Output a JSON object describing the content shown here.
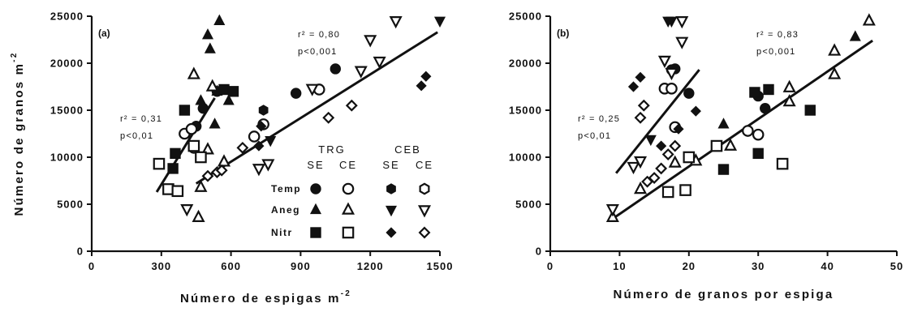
{
  "chart_data": [
    {
      "type": "scatter",
      "panel_label": "(a)",
      "xlabel": "Número de espigas m",
      "xlabel_sup": "-2",
      "ylabel": "Número de granos m",
      "ylabel_sup": "-2",
      "xlim": [
        0,
        1500
      ],
      "ylim": [
        0,
        25000
      ],
      "xticks": [
        0,
        300,
        600,
        900,
        1200,
        1500
      ],
      "yticks": [
        0,
        5000,
        10000,
        15000,
        20000,
        25000
      ],
      "grid": false,
      "legend_placement": "bottom-right",
      "annotations": [
        {
          "lines": [
            "r² = 0,31",
            "p<0,01"
          ]
        },
        {
          "lines": [
            "r² = 0,80",
            "p<0,001"
          ]
        }
      ],
      "regression_lines": [
        {
          "x": [
            280,
            530
          ],
          "y": [
            6300,
            16300
          ]
        },
        {
          "x": [
            450,
            1490
          ],
          "y": [
            7200,
            23300
          ]
        }
      ],
      "series": [
        {
          "system": "TRG",
          "treatment": "SE",
          "group": "Temp",
          "marker": "circle",
          "filled": true,
          "points": [
            [
              450,
              13300
            ],
            [
              480,
              15200
            ],
            [
              540,
              17000
            ],
            [
              880,
              16800
            ],
            [
              1050,
              19400
            ]
          ]
        },
        {
          "system": "TRG",
          "treatment": "CE",
          "group": "Temp",
          "marker": "circle",
          "filled": false,
          "points": [
            [
              400,
              12500
            ],
            [
              430,
              13000
            ],
            [
              440,
              11000
            ],
            [
              700,
              12200
            ],
            [
              740,
              13500
            ],
            [
              980,
              17200
            ]
          ]
        },
        {
          "system": "TRG",
          "treatment": "SE",
          "group": "Aneg",
          "marker": "triangle-up",
          "filled": true,
          "points": [
            [
              470,
              16000
            ],
            [
              500,
              23000
            ],
            [
              510,
              21500
            ],
            [
              530,
              13500
            ],
            [
              540,
              17000
            ],
            [
              550,
              24500
            ],
            [
              590,
              16000
            ]
          ]
        },
        {
          "system": "TRG",
          "treatment": "CE",
          "group": "Aneg",
          "marker": "triangle-up",
          "filled": false,
          "points": [
            [
              440,
              18800
            ],
            [
              460,
              3600
            ],
            [
              470,
              6800
            ],
            [
              500,
              10800
            ],
            [
              520,
              17500
            ],
            [
              570,
              9500
            ]
          ]
        },
        {
          "system": "TRG",
          "treatment": "SE",
          "group": "Nitr",
          "marker": "square",
          "filled": true,
          "points": [
            [
              350,
              8800
            ],
            [
              360,
              10400
            ],
            [
              400,
              15000
            ],
            [
              570,
              17200
            ],
            [
              610,
              17000
            ]
          ]
        },
        {
          "system": "TRG",
          "treatment": "CE",
          "group": "Nitr",
          "marker": "square",
          "filled": false,
          "points": [
            [
              290,
              9300
            ],
            [
              330,
              6600
            ],
            [
              370,
              6400
            ],
            [
              440,
              11200
            ],
            [
              470,
              10000
            ]
          ]
        },
        {
          "system": "CEB",
          "treatment": "SE",
          "group": "Temp",
          "marker": "hexagon",
          "filled": true,
          "points": [
            [
              740,
              15000
            ]
          ]
        },
        {
          "system": "CEB",
          "treatment": "CE",
          "group": "Temp",
          "marker": "hexagon",
          "filled": false,
          "points": []
        },
        {
          "system": "CEB",
          "treatment": "SE",
          "group": "Aneg",
          "marker": "triangle-down",
          "filled": true,
          "points": [
            [
              770,
              11800
            ],
            [
              1500,
              24500
            ]
          ]
        },
        {
          "system": "CEB",
          "treatment": "CE",
          "group": "Aneg",
          "marker": "triangle-down",
          "filled": false,
          "points": [
            [
              410,
              4500
            ],
            [
              720,
              8800
            ],
            [
              760,
              9300
            ],
            [
              950,
              17300
            ],
            [
              1160,
              19200
            ],
            [
              1200,
              22500
            ],
            [
              1240,
              20200
            ],
            [
              1310,
              24500
            ]
          ]
        },
        {
          "system": "CEB",
          "treatment": "SE",
          "group": "Nitr",
          "marker": "diamond",
          "filled": true,
          "points": [
            [
              720,
              11200
            ],
            [
              730,
              13300
            ],
            [
              1420,
              17600
            ],
            [
              1440,
              18600
            ]
          ]
        },
        {
          "system": "CEB",
          "treatment": "CE",
          "group": "Nitr",
          "marker": "diamond",
          "filled": false,
          "points": [
            [
              500,
              8000
            ],
            [
              540,
              8400
            ],
            [
              560,
              8600
            ],
            [
              650,
              11000
            ],
            [
              1020,
              14200
            ],
            [
              1120,
              15500
            ]
          ]
        }
      ]
    },
    {
      "type": "scatter",
      "panel_label": "(b)",
      "xlabel": "Número de granos por espiga",
      "xlabel_sup": "",
      "ylabel": "",
      "ylabel_sup": "",
      "xlim": [
        0,
        50
      ],
      "ylim": [
        0,
        25000
      ],
      "xticks": [
        0,
        10,
        20,
        30,
        40,
        50
      ],
      "yticks": [
        0,
        5000,
        10000,
        15000,
        20000,
        25000
      ],
      "grid": false,
      "annotations": [
        {
          "lines": [
            "r² = 0,25",
            "p<0,01"
          ]
        },
        {
          "lines": [
            "r² = 0,83",
            "p<0,001"
          ]
        }
      ],
      "regression_lines": [
        {
          "x": [
            9.5,
            21.5
          ],
          "y": [
            8300,
            19300
          ]
        },
        {
          "x": [
            8.5,
            46.5
          ],
          "y": [
            3200,
            22400
          ]
        }
      ],
      "series": [
        {
          "system": "TRG",
          "treatment": "SE",
          "group": "Temp",
          "marker": "circle",
          "filled": true,
          "points": [
            [
              17.5,
              19300
            ],
            [
              18,
              19400
            ],
            [
              20,
              16800
            ],
            [
              30,
              16500
            ],
            [
              31,
              15200
            ]
          ]
        },
        {
          "system": "TRG",
          "treatment": "CE",
          "group": "Temp",
          "marker": "circle",
          "filled": false,
          "points": [
            [
              16.5,
              17300
            ],
            [
              17.5,
              17300
            ],
            [
              18,
              13200
            ],
            [
              28.5,
              12800
            ],
            [
              30,
              12400
            ]
          ]
        },
        {
          "system": "TRG",
          "treatment": "SE",
          "group": "Aneg",
          "marker": "triangle-up",
          "filled": true,
          "points": [
            [
              25,
              13500
            ],
            [
              44,
              22800
            ]
          ]
        },
        {
          "system": "TRG",
          "treatment": "CE",
          "group": "Aneg",
          "marker": "triangle-up",
          "filled": false,
          "points": [
            [
              9,
              3600
            ],
            [
              13,
              6600
            ],
            [
              18,
              9400
            ],
            [
              21,
              9600
            ],
            [
              26,
              11200
            ],
            [
              34.5,
              17400
            ],
            [
              34.5,
              15900
            ],
            [
              41,
              21300
            ],
            [
              41,
              18800
            ],
            [
              46,
              24500
            ]
          ]
        },
        {
          "system": "TRG",
          "treatment": "SE",
          "group": "Nitr",
          "marker": "square",
          "filled": true,
          "points": [
            [
              25,
              8700
            ],
            [
              29.5,
              16900
            ],
            [
              30,
              10400
            ],
            [
              31.5,
              17200
            ],
            [
              37.5,
              15000
            ]
          ]
        },
        {
          "system": "TRG",
          "treatment": "CE",
          "group": "Nitr",
          "marker": "square",
          "filled": false,
          "points": [
            [
              17,
              6300
            ],
            [
              19.5,
              6500
            ],
            [
              20,
              10000
            ],
            [
              24,
              11200
            ],
            [
              33.5,
              9300
            ]
          ]
        },
        {
          "system": "CEB",
          "treatment": "SE",
          "group": "Temp",
          "marker": "hexagon",
          "filled": true,
          "points": []
        },
        {
          "system": "CEB",
          "treatment": "CE",
          "group": "Temp",
          "marker": "hexagon",
          "filled": false,
          "points": []
        },
        {
          "system": "CEB",
          "treatment": "SE",
          "group": "Aneg",
          "marker": "triangle-down",
          "filled": true,
          "points": [
            [
              14.5,
              11900
            ],
            [
              17,
              24500
            ],
            [
              17.5,
              24500
            ],
            [
              19,
              24500
            ]
          ]
        },
        {
          "system": "CEB",
          "treatment": "CE",
          "group": "Aneg",
          "marker": "triangle-down",
          "filled": false,
          "points": [
            [
              9,
              4500
            ],
            [
              12,
              9000
            ],
            [
              13,
              9600
            ],
            [
              16.5,
              20300
            ],
            [
              17.5,
              19000
            ],
            [
              19,
              24500
            ],
            [
              19,
              22300
            ]
          ]
        },
        {
          "system": "CEB",
          "treatment": "SE",
          "group": "Nitr",
          "marker": "diamond",
          "filled": true,
          "points": [
            [
              12,
              17500
            ],
            [
              13,
              18500
            ],
            [
              16,
              11200
            ],
            [
              18.5,
              13000
            ],
            [
              21,
              14900
            ]
          ]
        },
        {
          "system": "CEB",
          "treatment": "CE",
          "group": "Nitr",
          "marker": "diamond",
          "filled": false,
          "points": [
            [
              13,
              14200
            ],
            [
              13.5,
              15500
            ],
            [
              14,
              7400
            ],
            [
              15,
              7800
            ],
            [
              16,
              8800
            ],
            [
              17,
              10300
            ],
            [
              18,
              11200
            ]
          ]
        }
      ]
    }
  ],
  "legend": {
    "systems": [
      "TRG",
      "CEB"
    ],
    "treatments": [
      "SE",
      "CE",
      "SE",
      "CE"
    ],
    "rows": [
      "Temp",
      "Aneg",
      "Nitr"
    ],
    "markers": {
      "Temp": [
        "circle-filled",
        "circle-open",
        "hexagon-filled",
        "hexagon-open"
      ],
      "Aneg": [
        "triangle-up-filled",
        "triangle-up-open",
        "triangle-down-filled",
        "triangle-down-open"
      ],
      "Nitr": [
        "square-filled",
        "square-open",
        "diamond-filled",
        "diamond-open"
      ]
    }
  }
}
